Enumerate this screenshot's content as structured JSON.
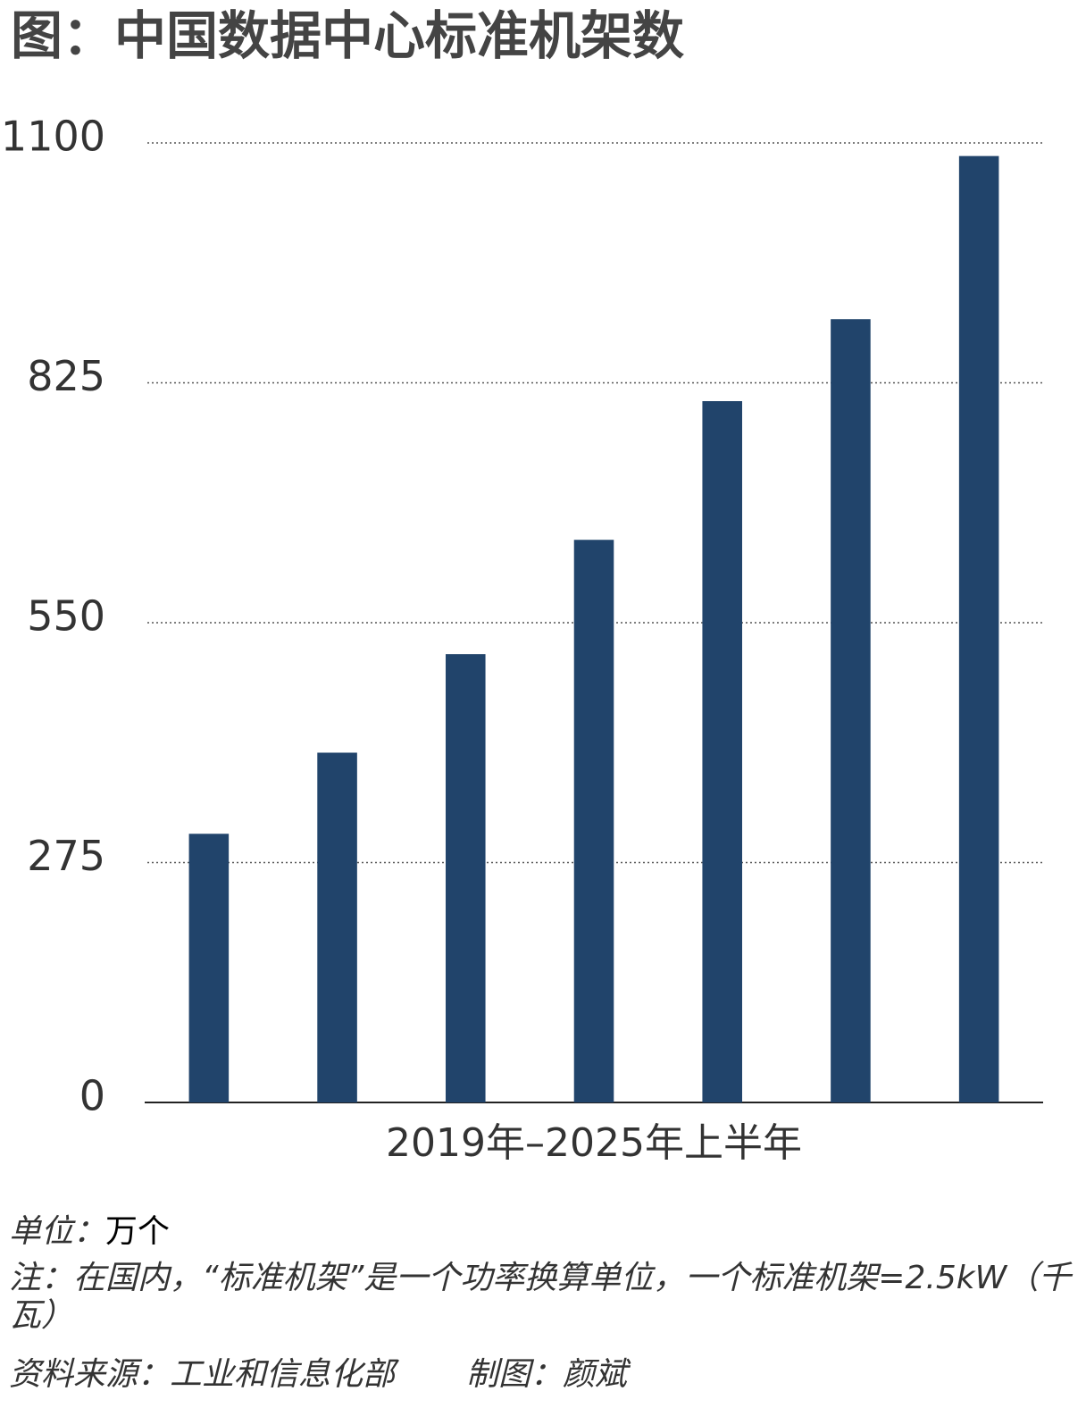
{
  "chart_data": {
    "type": "bar",
    "title": "图：中国数据中心标准机架数",
    "x_label": "2019年–2025年上半年",
    "categories": [
      null,
      null,
      null,
      null,
      null,
      null,
      null
    ],
    "values": [
      308,
      401,
      514,
      645,
      804,
      898,
      1085
    ],
    "color": "#21446b",
    "ylim": [
      0,
      1100
    ],
    "yticks": [
      0,
      275,
      550,
      825,
      1100
    ],
    "grid": true
  },
  "footer": {
    "unit_label": "单位：",
    "unit": "万个",
    "note": "注：在国内，“标准机架”是一个功率换算单位，一个标准机架=2.5kW（千瓦）",
    "source": "资料来源：工业和信息化部",
    "credit": "制图：颜斌"
  }
}
